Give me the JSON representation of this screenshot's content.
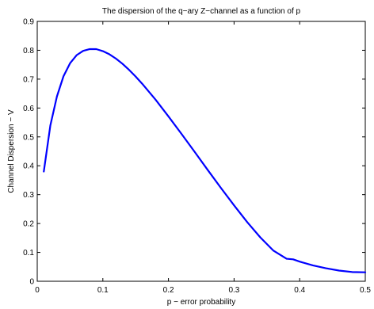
{
  "chart_data": {
    "type": "line",
    "title": "The dispersion of the q−ary Z−channel as a function of p",
    "xlabel": "p − error probability",
    "ylabel": "Channel Dispersion − V",
    "xlim": [
      0,
      0.5
    ],
    "ylim": [
      0,
      0.9
    ],
    "x_ticks": [
      0,
      0.1,
      0.2,
      0.3,
      0.4,
      0.5
    ],
    "x_tick_labels": [
      "0",
      "0.1",
      "0.2",
      "0.3",
      "0.4",
      "0.5"
    ],
    "y_ticks": [
      0,
      0.1,
      0.2,
      0.3,
      0.4,
      0.5,
      0.6,
      0.7,
      0.8,
      0.9
    ],
    "y_tick_labels": [
      "0",
      "0.1",
      "0.2",
      "0.3",
      "0.4",
      "0.5",
      "0.6",
      "0.7",
      "0.8",
      "0.9"
    ],
    "grid": false,
    "series": [
      {
        "color": "#0000ff",
        "x": [
          0.01,
          0.02,
          0.03,
          0.04,
          0.05,
          0.06,
          0.07,
          0.08,
          0.09,
          0.1,
          0.11,
          0.12,
          0.13,
          0.14,
          0.15,
          0.16,
          0.18,
          0.2,
          0.22,
          0.24,
          0.26,
          0.28,
          0.3,
          0.32,
          0.34,
          0.36,
          0.38,
          0.39,
          0.4,
          0.42,
          0.44,
          0.46,
          0.48,
          0.5
        ],
        "y": [
          0.38,
          0.54,
          0.64,
          0.71,
          0.755,
          0.783,
          0.798,
          0.804,
          0.804,
          0.797,
          0.786,
          0.771,
          0.753,
          0.732,
          0.709,
          0.684,
          0.63,
          0.571,
          0.51,
          0.448,
          0.385,
          0.323,
          0.263,
          0.205,
          0.152,
          0.106,
          0.078,
          0.076,
          0.068,
          0.055,
          0.045,
          0.037,
          0.032,
          0.031
        ]
      }
    ]
  }
}
